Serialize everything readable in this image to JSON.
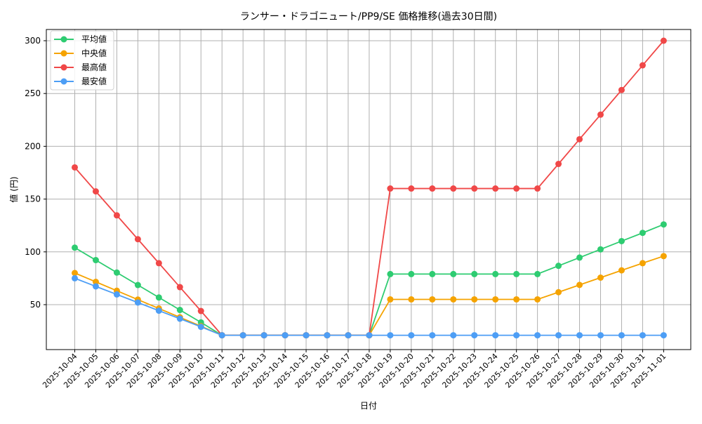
{
  "chart_data": {
    "type": "line",
    "title": "ランサー・ドラゴニュート/PP9/SE 価格推移(過去30日間)",
    "xlabel": "日付",
    "ylabel": "値 (円)",
    "ylim": [
      12,
      313
    ],
    "yticks": [
      50,
      100,
      150,
      200,
      250,
      300
    ],
    "grid": true,
    "legend_position": "upper left",
    "categories": [
      "2025-10-04",
      "2025-10-05",
      "2025-10-06",
      "2025-10-07",
      "2025-10-08",
      "2025-10-09",
      "2025-10-10",
      "2025-10-11",
      "2025-10-12",
      "2025-10-13",
      "2025-10-14",
      "2025-10-15",
      "2025-10-16",
      "2025-10-17",
      "2025-10-18",
      "2025-10-19",
      "2025-10-20",
      "2025-10-21",
      "2025-10-22",
      "2025-10-23",
      "2025-10-24",
      "2025-10-25",
      "2025-10-26",
      "2025-10-27",
      "2025-10-28",
      "2025-10-29",
      "2025-10-30",
      "2025-10-31",
      "2025-11-01"
    ],
    "series": [
      {
        "name": "平均値",
        "color": "#2ecc71",
        "values": [
          104,
          92.2,
          80.4,
          68.6,
          56.8,
          45,
          33.2,
          21,
          21,
          21,
          21,
          21,
          21,
          21,
          21,
          79,
          79,
          79,
          79,
          79,
          79,
          79,
          79,
          86.8,
          94.6,
          102.4,
          110.2,
          118,
          126
        ]
      },
      {
        "name": "中央値",
        "color": "#f5a300",
        "values": [
          80,
          71.6,
          63.2,
          54.8,
          46.4,
          38,
          29.6,
          21,
          21,
          21,
          21,
          21,
          21,
          21,
          21,
          55,
          55,
          55,
          55,
          55,
          55,
          55,
          55,
          61.8,
          68.7,
          75.6,
          82.5,
          89.3,
          96
        ]
      },
      {
        "name": "最高値",
        "color": "#f04848",
        "values": [
          180,
          157.3,
          134.6,
          112,
          89.3,
          66.6,
          44,
          21,
          21,
          21,
          21,
          21,
          21,
          21,
          21,
          160,
          160,
          160,
          160,
          160,
          160,
          160,
          160,
          183.3,
          206.7,
          230,
          253.3,
          276.7,
          300
        ]
      },
      {
        "name": "最安値",
        "color": "#4d9ef5",
        "values": [
          75,
          67.3,
          59.7,
          52,
          44.3,
          36.7,
          29,
          21,
          21,
          21,
          21,
          21,
          21,
          21,
          21,
          21,
          21,
          21,
          21,
          21,
          21,
          21,
          21,
          21,
          21,
          21,
          21,
          21,
          21
        ]
      }
    ]
  }
}
